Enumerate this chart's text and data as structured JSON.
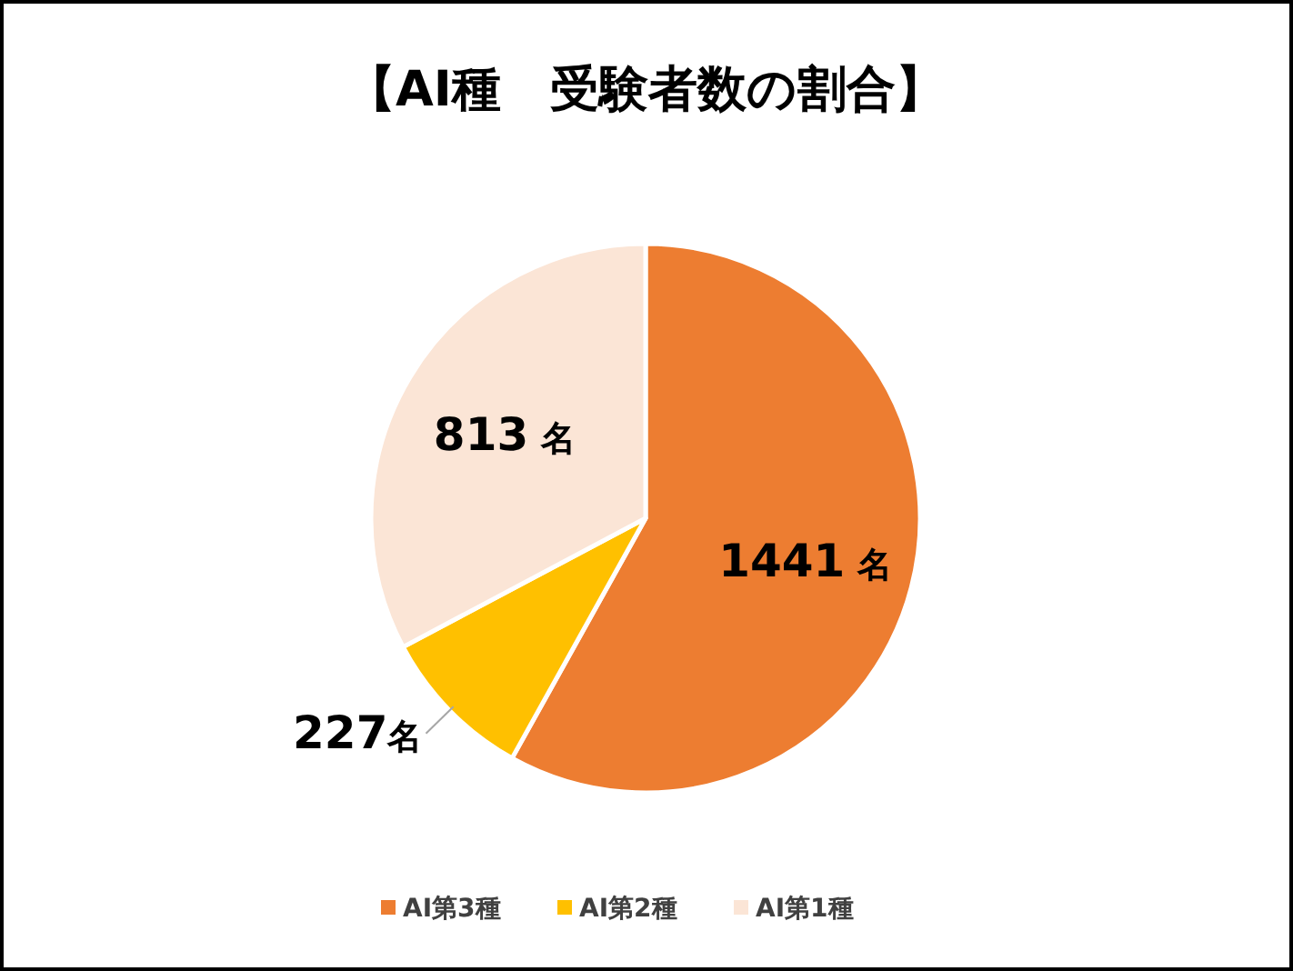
{
  "chart_data": {
    "type": "pie",
    "title": "【AI種　受験者数の割合】",
    "categories": [
      "AI第3種",
      "AI第2種",
      "AI第1種"
    ],
    "values": [
      1441,
      227,
      813
    ],
    "colors": [
      "#ed7d31",
      "#ffc000",
      "#fbe5d6"
    ],
    "value_labels": [
      "1441 名",
      "227名",
      "813 名"
    ],
    "legend": "bottom"
  }
}
